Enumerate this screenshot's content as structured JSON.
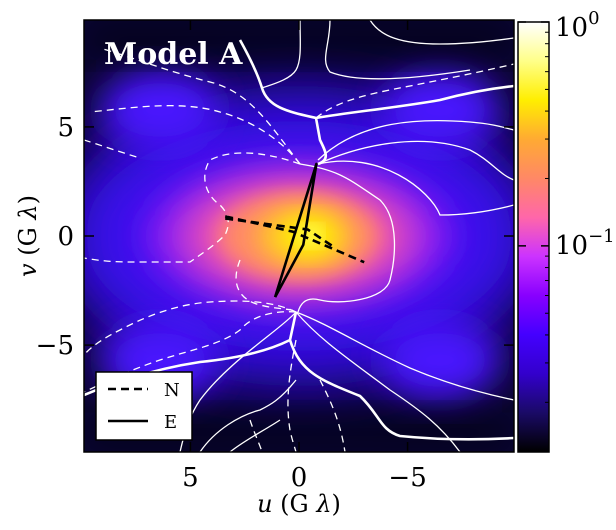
{
  "chart_data": {
    "type": "heatmap",
    "title": "Model A",
    "xlabel": "u (G λ)",
    "ylabel": "v (G λ)",
    "xlabel_parts": [
      "u",
      " (G ",
      "λ",
      ")"
    ],
    "ylabel_parts": [
      "v",
      " (G ",
      "λ",
      ")"
    ],
    "xlim": [
      9.9,
      -9.9
    ],
    "ylim": [
      -9.9,
      9.9
    ],
    "x_ticks": [
      5,
      0,
      -5
    ],
    "y_ticks": [
      5,
      0,
      -5
    ],
    "x_tick_labels": [
      "5",
      "0",
      "−5"
    ],
    "y_tick_labels": [
      "5",
      "0",
      "−5"
    ],
    "colorbar": {
      "scale": "log",
      "range": [
        0.012,
        1.0
      ],
      "tick_labels": [
        {
          "base": "10",
          "exp": "0",
          "value": 1.0
        },
        {
          "base": "10",
          "exp": "−1",
          "value": 0.1
        }
      ],
      "colormap": [
        "#000000",
        "#1a0a66",
        "#3300cc",
        "#4400ff",
        "#8800ff",
        "#cc33ff",
        "#ff66aa",
        "#ff8866",
        "#ffaa33",
        "#ffee00",
        "#ffff88",
        "#ffffff"
      ]
    },
    "legend": {
      "placement": "lower-left",
      "entries": [
        {
          "label": "N",
          "style": "dashed"
        },
        {
          "label": "E",
          "style": "solid"
        }
      ]
    },
    "baseline_tracks": [
      {
        "name": "N",
        "style": "dashed",
        "points": [
          [
            3.4,
            0.9
          ],
          [
            0.3,
            0.2
          ],
          [
            -3.0,
            -1.2
          ]
        ]
      },
      {
        "name": "N",
        "style": "dashed",
        "points": [
          [
            3.4,
            0.8
          ],
          [
            -0.4,
            0.3
          ],
          [
            -1.6,
            -0.5
          ]
        ]
      },
      {
        "name": "E",
        "style": "solid",
        "points": [
          [
            1.1,
            -2.8
          ],
          [
            -0.8,
            3.3
          ],
          [
            -0.2,
            -0.4
          ],
          [
            1.1,
            -2.8
          ]
        ]
      }
    ],
    "colors": {
      "contour_solid": "#ffffff",
      "contour_dashed": "#ffffff",
      "track": "#000000"
    }
  }
}
